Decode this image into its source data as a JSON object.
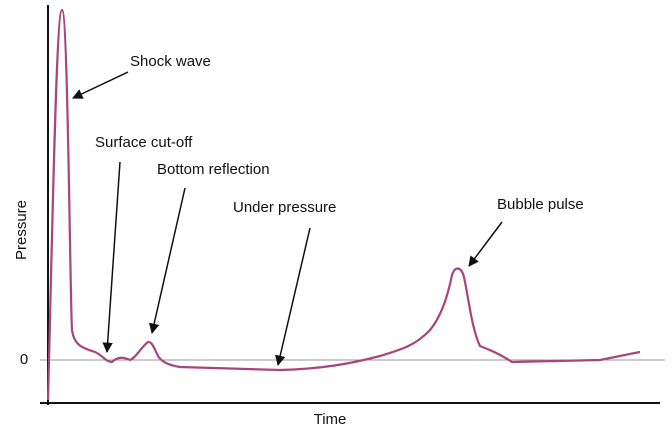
{
  "axes": {
    "y_label": "Pressure",
    "x_label": "Time",
    "zero_label": "0"
  },
  "annotations": [
    {
      "label": "Shock wave"
    },
    {
      "label": "Surface cut-off"
    },
    {
      "label": "Bottom reflection"
    },
    {
      "label": "Under pressure"
    },
    {
      "label": "Bubble pulse"
    }
  ]
}
